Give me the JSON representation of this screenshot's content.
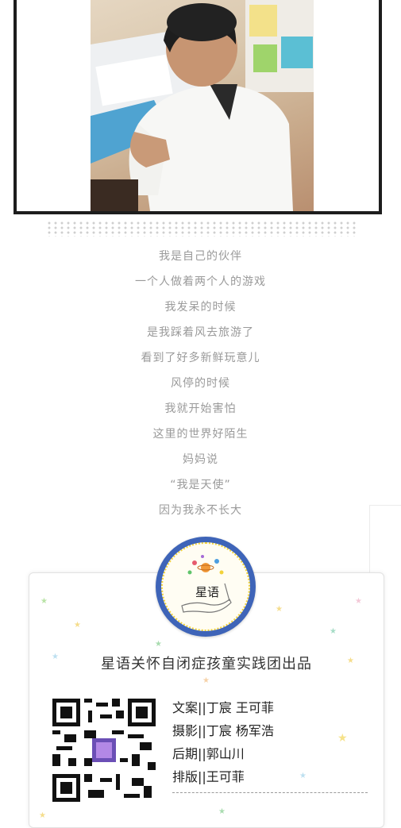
{
  "photo": {
    "alt": "photo"
  },
  "poem": {
    "lines": [
      "我是自己的伙伴",
      "一个人做着两个人的游戏",
      "我发呆的时候",
      "是我踩着风去旅游了",
      "看到了好多新鲜玩意儿",
      "风停的时候",
      "我就开始害怕",
      "这里的世界好陌生",
      "妈妈说",
      "“我是天使”",
      "因为我永不长大"
    ]
  },
  "logo": {
    "text": "星语"
  },
  "card": {
    "title": "星语关怀自闭症孩童实践团出品",
    "credits": [
      "文案||丁宸 王可菲",
      "摄影||丁宸 杨军浩",
      "后期||郭山川",
      "排版||王可菲"
    ]
  },
  "colors": {
    "logo_ring": "#3e64b8",
    "logo_dots": "#f2d23a",
    "frame": "#1d1d1d"
  }
}
